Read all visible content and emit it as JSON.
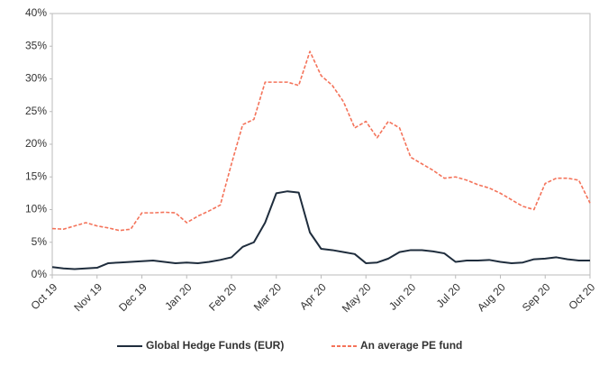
{
  "chart_data": {
    "type": "line",
    "categories": [
      "Oct 19",
      null,
      null,
      null,
      "Nov 19",
      null,
      null,
      null,
      "Dec 19",
      null,
      null,
      null,
      "Jan 20",
      null,
      null,
      null,
      "Feb 20",
      null,
      null,
      null,
      "Mar 20",
      null,
      null,
      null,
      "Apr 20",
      null,
      null,
      null,
      "May 20",
      null,
      null,
      null,
      "Jun 20",
      null,
      null,
      null,
      "Jul 20",
      null,
      null,
      null,
      "Aug 20",
      null,
      null,
      null,
      "Sep 20",
      null,
      null,
      null,
      "Oct 20"
    ],
    "series": [
      {
        "name": "Global Hedge Funds (EUR)",
        "color": "#1f2d3d",
        "dashed": false,
        "values": [
          1.2,
          1.0,
          0.9,
          1.0,
          1.1,
          1.8,
          1.9,
          2.0,
          2.1,
          2.2,
          2.0,
          1.8,
          1.9,
          1.8,
          2.0,
          2.3,
          2.7,
          4.3,
          5.0,
          8.0,
          12.5,
          12.8,
          12.6,
          6.5,
          4.0,
          3.8,
          3.5,
          3.2,
          1.8,
          1.9,
          2.5,
          3.5,
          3.8,
          3.8,
          3.6,
          3.3,
          2.0,
          2.2,
          2.2,
          2.3,
          2.0,
          1.8,
          1.9,
          2.4,
          2.5,
          2.7,
          2.4,
          2.2,
          2.2
        ]
      },
      {
        "name": "An average PE fund",
        "color": "#f4735a",
        "dashed": true,
        "values": [
          7.1,
          7.0,
          7.5,
          8.0,
          7.5,
          7.2,
          6.8,
          7.0,
          9.5,
          9.5,
          9.6,
          9.5,
          8.0,
          9.0,
          9.8,
          10.7,
          17.0,
          23.0,
          23.8,
          29.5,
          29.5,
          29.5,
          29.0,
          34.2,
          30.5,
          29.0,
          26.5,
          22.5,
          23.5,
          21.0,
          23.5,
          22.5,
          18.0,
          17.0,
          16.0,
          14.8,
          15.0,
          14.5,
          13.8,
          13.3,
          12.5,
          11.5,
          10.5,
          10.0,
          14.0,
          14.8,
          14.8,
          14.5,
          11.0
        ]
      }
    ],
    "ylim": [
      0,
      40
    ],
    "yticks": [
      {
        "value": 0,
        "label": "0%"
      },
      {
        "value": 5,
        "label": "5%"
      },
      {
        "value": 10,
        "label": "10%"
      },
      {
        "value": 15,
        "label": "15%"
      },
      {
        "value": 20,
        "label": "20%"
      },
      {
        "value": 25,
        "label": "25%"
      },
      {
        "value": 30,
        "label": "30%"
      },
      {
        "value": 35,
        "label": "35%"
      },
      {
        "value": 40,
        "label": "40%"
      }
    ],
    "grid": false,
    "legend": "bottom"
  }
}
